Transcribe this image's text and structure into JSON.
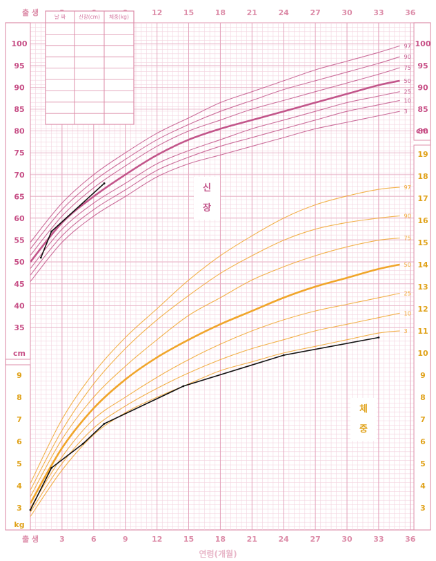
{
  "chart_data": {
    "type": "line",
    "xlabel": "연령(개월)",
    "x_ticks": [
      0,
      3,
      6,
      9,
      12,
      15,
      18,
      21,
      24,
      27,
      30,
      33,
      36
    ],
    "x_tick_labels": [
      "출 생",
      "3",
      "6",
      "9",
      "12",
      "15",
      "18",
      "21",
      "24",
      "27",
      "30",
      "33",
      "36"
    ],
    "xlim": [
      0,
      36
    ],
    "height": {
      "label": "신장",
      "unit": "cm",
      "ylim": [
        33,
        103
      ],
      "y_ticks": [
        35,
        40,
        45,
        50,
        55,
        60,
        65,
        70,
        75,
        80,
        85,
        90,
        95,
        100
      ],
      "right_ticks": [
        80,
        85,
        90,
        95,
        100
      ],
      "color": "#c2558a",
      "x": [
        0,
        3,
        6,
        9,
        12,
        15,
        18,
        21,
        24,
        27,
        30,
        33,
        35
      ],
      "series": [
        {
          "name": "3",
          "values": [
            45.5,
            54.5,
            60.5,
            65.0,
            69.5,
            72.5,
            74.5,
            76.5,
            78.5,
            80.5,
            82.0,
            83.5,
            84.5
          ]
        },
        {
          "name": "10",
          "values": [
            47.0,
            56.0,
            62.0,
            66.5,
            71.0,
            74.0,
            76.5,
            78.5,
            80.5,
            82.5,
            84.5,
            86.0,
            87.0
          ]
        },
        {
          "name": "25",
          "values": [
            48.5,
            57.5,
            63.5,
            68.0,
            72.5,
            75.5,
            78.0,
            80.5,
            82.5,
            84.5,
            86.5,
            88.0,
            89.0
          ]
        },
        {
          "name": "50",
          "values": [
            50.0,
            59.0,
            65.0,
            70.0,
            74.5,
            78.0,
            80.5,
            82.5,
            84.5,
            86.5,
            88.5,
            90.5,
            91.5
          ]
        },
        {
          "name": "75",
          "values": [
            51.5,
            60.5,
            67.0,
            72.0,
            76.5,
            80.0,
            82.5,
            85.0,
            87.0,
            89.0,
            91.0,
            93.0,
            94.5
          ]
        },
        {
          "name": "90",
          "values": [
            53.0,
            62.0,
            68.5,
            73.5,
            78.0,
            81.5,
            84.5,
            87.0,
            89.5,
            91.5,
            93.5,
            95.5,
            97.0
          ]
        },
        {
          "name": "97",
          "values": [
            54.5,
            63.5,
            70.0,
            75.0,
            79.5,
            83.0,
            86.5,
            89.0,
            91.5,
            94.0,
            96.0,
            98.0,
            99.5
          ]
        }
      ],
      "record": {
        "x": [
          1.0,
          2.0,
          7.0
        ],
        "values": [
          51.0,
          57.0,
          68.0
        ]
      }
    },
    "weight": {
      "label": "체중",
      "unit": "kg",
      "ylim": [
        2.4,
        19.8
      ],
      "y_ticks": [
        3,
        4,
        5,
        6,
        7,
        8,
        9,
        10,
        11,
        12,
        13,
        14,
        15,
        16,
        17,
        18,
        19
      ],
      "left_ticks": [
        3,
        4,
        5,
        6,
        7,
        8,
        9
      ],
      "color": "#f0a52a",
      "x": [
        0,
        3,
        6,
        9,
        12,
        15,
        18,
        21,
        24,
        27,
        30,
        33,
        35
      ],
      "series": [
        {
          "name": "3",
          "values": [
            2.6,
            4.7,
            6.3,
            7.3,
            8.0,
            8.6,
            9.2,
            9.6,
            10.0,
            10.3,
            10.6,
            10.9,
            11.0
          ]
        },
        {
          "name": "10",
          "values": [
            2.8,
            5.0,
            6.6,
            7.6,
            8.4,
            9.1,
            9.7,
            10.2,
            10.6,
            11.0,
            11.3,
            11.6,
            11.8
          ]
        },
        {
          "name": "25",
          "values": [
            3.0,
            5.3,
            7.0,
            8.0,
            8.9,
            9.7,
            10.4,
            11.0,
            11.5,
            11.9,
            12.2,
            12.5,
            12.7
          ]
        },
        {
          "name": "50",
          "values": [
            3.2,
            5.7,
            7.5,
            8.8,
            9.8,
            10.6,
            11.3,
            11.9,
            12.5,
            13.0,
            13.4,
            13.8,
            14.0
          ]
        },
        {
          "name": "75",
          "values": [
            3.5,
            6.1,
            8.0,
            9.4,
            10.6,
            11.7,
            12.5,
            13.3,
            13.9,
            14.4,
            14.8,
            15.1,
            15.2
          ]
        },
        {
          "name": "90",
          "values": [
            3.8,
            6.5,
            8.6,
            10.2,
            11.5,
            12.6,
            13.6,
            14.4,
            15.1,
            15.6,
            15.9,
            16.1,
            16.2
          ]
        },
        {
          "name": "97",
          "values": [
            4.1,
            7.0,
            9.1,
            10.7,
            12.0,
            13.3,
            14.4,
            15.3,
            16.1,
            16.7,
            17.1,
            17.4,
            17.5
          ]
        }
      ],
      "record": {
        "x": [
          0.0,
          2.0,
          5.0,
          7.0,
          14.5,
          24.0,
          33.0
        ],
        "values": [
          2.9,
          4.8,
          5.9,
          6.8,
          8.5,
          9.9,
          10.7
        ]
      }
    }
  },
  "record_table": {
    "headers": [
      "날 짜",
      "신장(cm)",
      "체중(kg)"
    ]
  }
}
